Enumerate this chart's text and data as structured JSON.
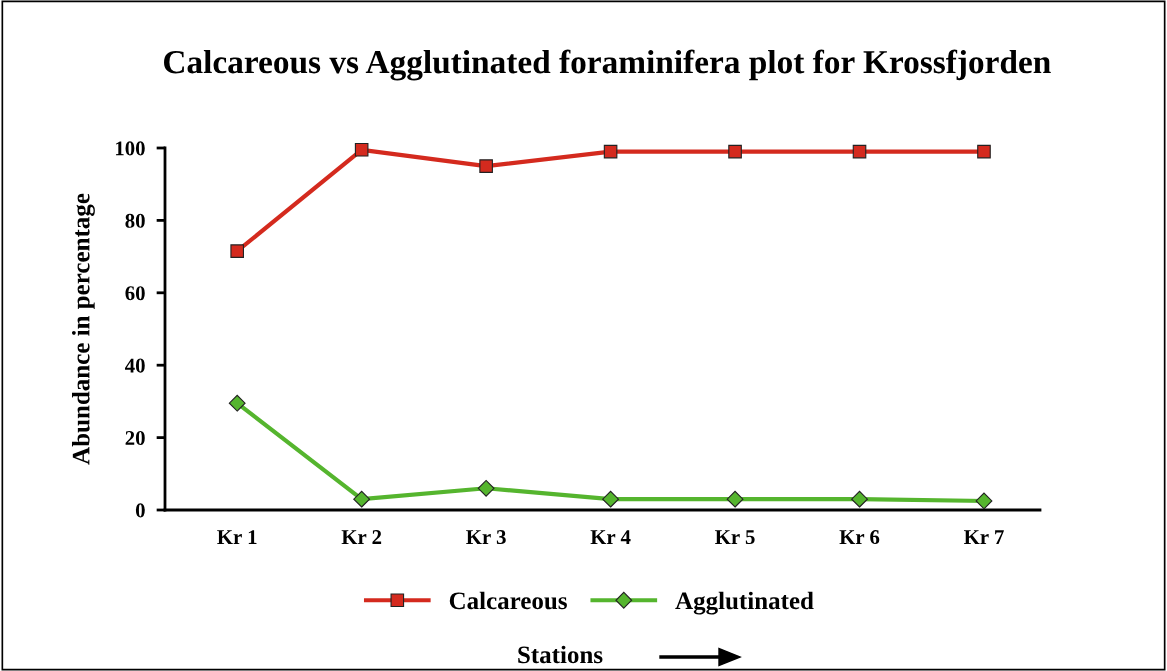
{
  "chart_data": {
    "type": "line",
    "title": "Calcareous vs Agglutinated foraminifera plot for Krossfjorden",
    "xlabel": "Stations",
    "ylabel": "Abundance in percentage",
    "categories": [
      "Kr 1",
      "Kr 2",
      "Kr 3",
      "Kr 4",
      "Kr 5",
      "Kr 6",
      "Kr 7"
    ],
    "series": [
      {
        "name": "Calcareous",
        "color": "#d42a1e",
        "marker": "square",
        "values": [
          71.5,
          99.5,
          95,
          99,
          99,
          99,
          99
        ]
      },
      {
        "name": "Agglutinated",
        "color": "#55b52e",
        "marker": "diamond",
        "values": [
          29.5,
          3,
          6,
          3,
          3,
          3,
          2.5
        ]
      }
    ],
    "ylim": [
      0,
      100
    ],
    "yticks": [
      0,
      20,
      40,
      60,
      80,
      100
    ],
    "grid": false,
    "legend": "bottom"
  }
}
